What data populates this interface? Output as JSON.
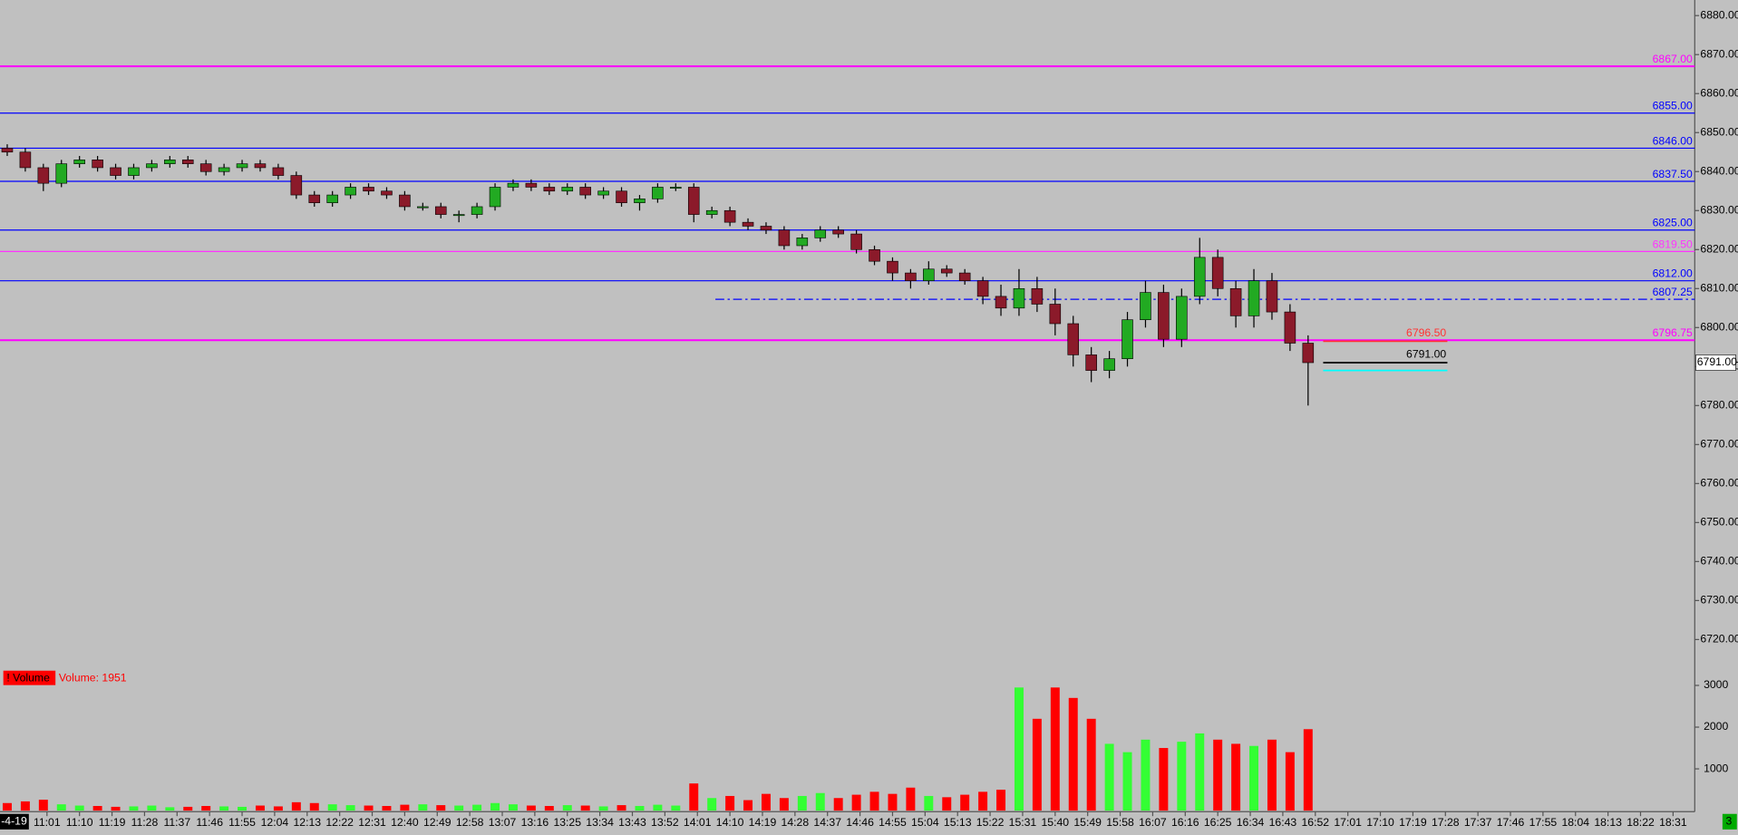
{
  "chart_data": {
    "type": "candlestick",
    "x": [
      "10:50",
      "10:55",
      "11:00",
      "11:05",
      "11:10",
      "11:15",
      "11:20",
      "11:25",
      "11:30",
      "11:35",
      "11:40",
      "11:45",
      "11:50",
      "11:55",
      "12:00",
      "12:05",
      "12:10",
      "12:15",
      "12:20",
      "12:25",
      "12:30",
      "12:35",
      "12:40",
      "12:45",
      "12:50",
      "12:55",
      "13:00",
      "13:05",
      "13:10",
      "13:15",
      "13:20",
      "13:25",
      "13:30",
      "13:35",
      "13:40",
      "13:45",
      "13:50",
      "13:55",
      "14:00",
      "14:05",
      "14:10",
      "14:15",
      "14:20",
      "14:25",
      "14:30",
      "14:35",
      "14:40",
      "14:45",
      "14:50",
      "14:55",
      "15:00",
      "15:05",
      "15:10",
      "15:15",
      "15:20",
      "15:25",
      "15:30",
      "15:35",
      "15:40",
      "15:45",
      "15:50",
      "15:55",
      "16:00",
      "16:05",
      "16:10",
      "16:15",
      "16:20",
      "16:25",
      "16:30",
      "16:35",
      "16:40",
      "16:45",
      "16:50"
    ],
    "open": [
      6846,
      6845,
      6841,
      6837,
      6842,
      6843,
      6841,
      6839,
      6841,
      6842,
      6843,
      6842,
      6840,
      6841,
      6842,
      6841,
      6839,
      6834,
      6832,
      6834,
      6836,
      6835,
      6834,
      6831,
      6831,
      6829,
      6829,
      6831,
      6836,
      6837,
      6836,
      6835,
      6836,
      6834,
      6835,
      6832,
      6833,
      6836,
      6836,
      6829,
      6830,
      6827,
      6826,
      6825,
      6821,
      6823,
      6825,
      6824,
      6820,
      6817,
      6814,
      6812,
      6815,
      6814,
      6812,
      6808,
      6805,
      6810,
      6806,
      6801,
      6793,
      6789,
      6792,
      6802,
      6809,
      6797,
      6808,
      6818,
      6810,
      6803,
      6812,
      6804,
      6796
    ],
    "high": [
      6847,
      6846,
      6842,
      6843,
      6844,
      6844,
      6842,
      6842,
      6843,
      6844,
      6844,
      6843,
      6842,
      6843,
      6843,
      6842,
      6840,
      6835,
      6835,
      6837,
      6837,
      6836,
      6835,
      6832,
      6832,
      6830,
      6832,
      6837,
      6838,
      6838,
      6837,
      6837,
      6837,
      6836,
      6836,
      6834,
      6837,
      6837,
      6837,
      6831,
      6831,
      6828,
      6827,
      6826,
      6824,
      6826,
      6826,
      6825,
      6821,
      6818,
      6815,
      6817,
      6816,
      6815,
      6813,
      6811,
      6815,
      6813,
      6810,
      6803,
      6795,
      6794,
      6804,
      6812,
      6811,
      6810,
      6823,
      6820,
      6812,
      6815,
      6814,
      6806,
      6798
    ],
    "low": [
      6844,
      6840,
      6835,
      6836,
      6841,
      6840,
      6838,
      6838,
      6840,
      6841,
      6841,
      6839,
      6839,
      6840,
      6840,
      6838,
      6833,
      6831,
      6831,
      6833,
      6834,
      6833,
      6830,
      6830,
      6828,
      6827,
      6828,
      6830,
      6835,
      6835,
      6834,
      6834,
      6833,
      6833,
      6831,
      6830,
      6832,
      6835,
      6827,
      6828,
      6826,
      6825,
      6824,
      6820,
      6820,
      6822,
      6823,
      6819,
      6816,
      6812,
      6810,
      6811,
      6813,
      6811,
      6806,
      6803,
      6803,
      6804,
      6798,
      6790,
      6786,
      6787,
      6790,
      6800,
      6795,
      6795,
      6806,
      6808,
      6800,
      6800,
      6802,
      6794,
      6780
    ],
    "close": [
      6845,
      6841,
      6837,
      6842,
      6843,
      6841,
      6839,
      6841,
      6842,
      6843,
      6842,
      6840,
      6841,
      6842,
      6841,
      6839,
      6834,
      6832,
      6834,
      6836,
      6835,
      6834,
      6831,
      6831,
      6829,
      6829,
      6831,
      6836,
      6837,
      6836,
      6835,
      6836,
      6834,
      6835,
      6832,
      6833,
      6836,
      6836,
      6829,
      6830,
      6827,
      6826,
      6825,
      6821,
      6823,
      6825,
      6824,
      6820,
      6817,
      6814,
      6812,
      6815,
      6814,
      6812,
      6808,
      6805,
      6810,
      6806,
      6801,
      6793,
      6789,
      6792,
      6802,
      6809,
      6797,
      6808,
      6818,
      6810,
      6803,
      6812,
      6804,
      6796,
      6791
    ],
    "volume": [
      180,
      220,
      260,
      150,
      120,
      110,
      90,
      100,
      120,
      80,
      90,
      110,
      100,
      90,
      120,
      100,
      200,
      180,
      150,
      130,
      120,
      110,
      140,
      150,
      130,
      120,
      140,
      180,
      150,
      120,
      110,
      130,
      120,
      100,
      130,
      110,
      140,
      120,
      650,
      300,
      350,
      250,
      400,
      300,
      350,
      420,
      300,
      380,
      450,
      400,
      550,
      350,
      320,
      380,
      450,
      500,
      2950,
      2200,
      2950,
      2700,
      2200,
      1600,
      1400,
      1700,
      1500,
      1650,
      1850,
      1700,
      1600,
      1550,
      1700,
      1400,
      1951
    ],
    "up_color": "#22aa22",
    "down_color": "#8b1a2a",
    "volume_up_color": "#33ff33",
    "volume_down_color": "#ff0000",
    "xlim": [
      "10:48",
      "18:37"
    ],
    "xticks": [
      "11:01",
      "11:10",
      "11:19",
      "11:28",
      "11:37",
      "11:46",
      "11:55",
      "12:04",
      "12:13",
      "12:22",
      "12:31",
      "12:40",
      "12:49",
      "12:58",
      "13:07",
      "13:16",
      "13:25",
      "13:34",
      "13:43",
      "13:52",
      "14:01",
      "14:10",
      "14:19",
      "14:28",
      "14:37",
      "14:46",
      "14:55",
      "15:04",
      "15:13",
      "15:22",
      "15:31",
      "15:40",
      "15:49",
      "15:58",
      "16:07",
      "16:16",
      "16:25",
      "16:34",
      "16:43",
      "16:52",
      "17:01",
      "17:10",
      "17:19",
      "17:28",
      "17:37",
      "17:46",
      "17:55",
      "18:04",
      "18:13",
      "18:22",
      "18:31"
    ],
    "ylim": [
      6716,
      6884
    ],
    "yticks": [
      {
        "value": 6880,
        "label": "6880.00"
      },
      {
        "value": 6870,
        "label": "6870.00"
      },
      {
        "value": 6860,
        "label": "6860.00"
      },
      {
        "value": 6850,
        "label": "6850.00"
      },
      {
        "value": 6840,
        "label": "6840.00"
      },
      {
        "value": 6830,
        "label": "6830.00"
      },
      {
        "value": 6820,
        "label": "6820.00"
      },
      {
        "value": 6810,
        "label": "6810.00"
      },
      {
        "value": 6800,
        "label": "6800.00"
      },
      {
        "value": 6790,
        "label": "6790.00"
      },
      {
        "value": 6780,
        "label": "6780.00"
      },
      {
        "value": 6770,
        "label": "6770.00"
      },
      {
        "value": 6760,
        "label": "6760.00"
      },
      {
        "value": 6750,
        "label": "6750.00"
      },
      {
        "value": 6740,
        "label": "6740.00"
      },
      {
        "value": 6730,
        "label": "6730.00"
      },
      {
        "value": 6720,
        "label": "6720.00"
      }
    ],
    "volume_ylim": [
      0,
      3460
    ],
    "volume_yticks": [
      1000,
      2000,
      3000
    ],
    "levels": [
      {
        "value": 6867,
        "label": "6867.00",
        "color": "#ff00ff"
      },
      {
        "value": 6855,
        "label": "6855.00",
        "color": "#0000ff"
      },
      {
        "value": 6846,
        "label": "6846.00",
        "color": "#0000ff"
      },
      {
        "value": 6837.5,
        "label": "6837.50",
        "color": "#0000ff"
      },
      {
        "value": 6825,
        "label": "6825.00",
        "color": "#0000ff"
      },
      {
        "value": 6819.5,
        "label": "6819.50",
        "color": "#ff33ff"
      },
      {
        "value": 6812,
        "label": "6812.00",
        "color": "#0000ff"
      },
      {
        "value": 6807.25,
        "label": "6807.25",
        "color": "#0000ff",
        "style": "dashdot"
      },
      {
        "value": 6796.75,
        "label": "6796.75",
        "color": "#ff00ff"
      }
    ],
    "markers": [
      {
        "value": 6796.5,
        "label": "6796.50",
        "color": "#ff3333"
      },
      {
        "value": 6791,
        "label": "6791.00",
        "color": "#000000"
      },
      {
        "value": 6789,
        "color": "#00ffff"
      }
    ],
    "last_price_label": "6791.00",
    "volume_badge": "! Volume",
    "volume_label": "Volume: 1951",
    "date_fragment": "-4-19",
    "corner_badge": "3"
  }
}
